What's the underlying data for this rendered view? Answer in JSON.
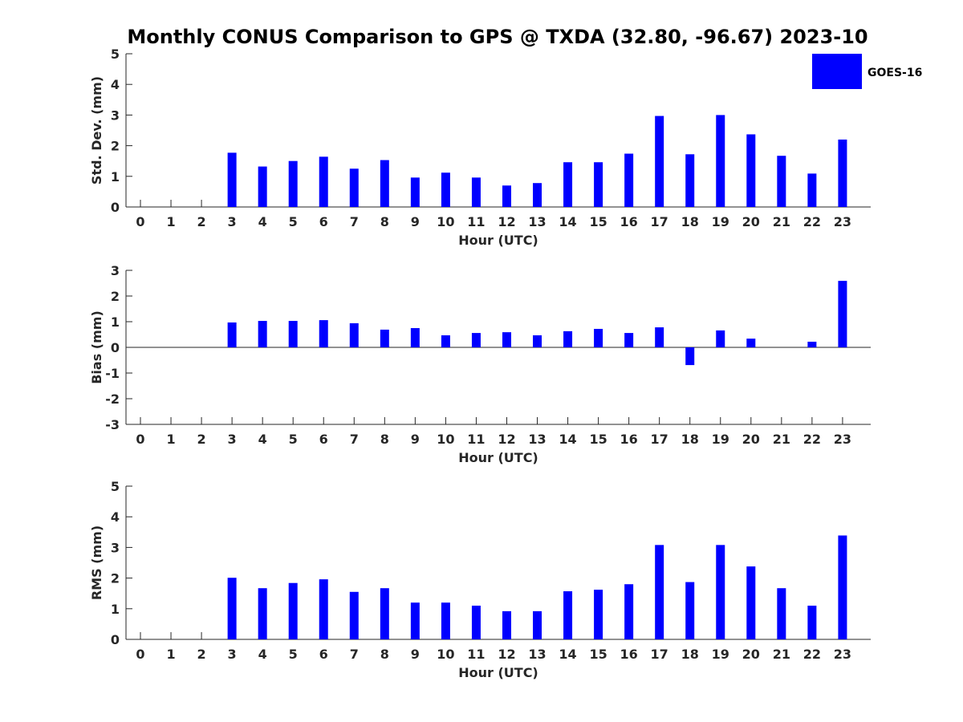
{
  "chart_data": {
    "type": "bar",
    "title": "Monthly CONUS Comparison to GPS @ TXDA (32.80, -96.67) 2023-10",
    "legend": {
      "entries": [
        "GOES-16"
      ],
      "placement": "top-right"
    },
    "bar_color": "#0000ff",
    "panels": [
      {
        "id": "stddev",
        "ylabel": "Std. Dev. (mm)",
        "xlabel": "Hour (UTC)",
        "ylim": [
          0,
          5
        ],
        "yticks": [
          "0",
          "1",
          "2",
          "3",
          "4",
          "5"
        ],
        "categories": [
          "0",
          "1",
          "2",
          "3",
          "4",
          "5",
          "6",
          "7",
          "8",
          "9",
          "10",
          "11",
          "12",
          "13",
          "14",
          "15",
          "16",
          "17",
          "18",
          "19",
          "20",
          "21",
          "22",
          "23"
        ],
        "series": [
          {
            "name": "GOES-16",
            "values": [
              0,
              0,
              0,
              1.77,
              1.32,
              1.5,
              1.64,
              1.25,
              1.53,
              0.96,
              1.12,
              0.96,
              0.7,
              0.78,
              1.46,
              1.46,
              1.74,
              2.97,
              1.72,
              3.0,
              2.37,
              1.67,
              1.09,
              2.2
            ]
          }
        ]
      },
      {
        "id": "bias",
        "ylabel": "Bias (mm)",
        "xlabel": "Hour (UTC)",
        "ylim": [
          -3,
          3
        ],
        "yticks": [
          "-3",
          "-2",
          "-1",
          "0",
          "1",
          "2",
          "3"
        ],
        "zero_line": true,
        "categories": [
          "0",
          "1",
          "2",
          "3",
          "4",
          "5",
          "6",
          "7",
          "8",
          "9",
          "10",
          "11",
          "12",
          "13",
          "14",
          "15",
          "16",
          "17",
          "18",
          "19",
          "20",
          "21",
          "22",
          "23"
        ],
        "series": [
          {
            "name": "GOES-16",
            "values": [
              0,
              0,
              0,
              0.97,
              1.03,
              1.03,
              1.06,
              0.94,
              0.69,
              0.75,
              0.47,
              0.56,
              0.59,
              0.47,
              0.63,
              0.72,
              0.56,
              0.78,
              -0.69,
              0.66,
              0.34,
              0,
              0.22,
              2.59
            ]
          }
        ]
      },
      {
        "id": "rms",
        "ylabel": "RMS (mm)",
        "xlabel": "Hour (UTC)",
        "ylim": [
          0,
          5
        ],
        "yticks": [
          "0",
          "1",
          "2",
          "3",
          "4",
          "5"
        ],
        "categories": [
          "0",
          "1",
          "2",
          "3",
          "4",
          "5",
          "6",
          "7",
          "8",
          "9",
          "10",
          "11",
          "12",
          "13",
          "14",
          "15",
          "16",
          "17",
          "18",
          "19",
          "20",
          "21",
          "22",
          "23"
        ],
        "series": [
          {
            "name": "GOES-16",
            "values": [
              0,
              0,
              0,
              2.01,
              1.67,
              1.84,
              1.96,
              1.55,
              1.67,
              1.2,
              1.2,
              1.1,
              0.92,
              0.92,
              1.57,
              1.62,
              1.8,
              3.08,
              1.87,
              3.08,
              2.38,
              1.67,
              1.1,
              3.39
            ]
          }
        ]
      }
    ]
  }
}
